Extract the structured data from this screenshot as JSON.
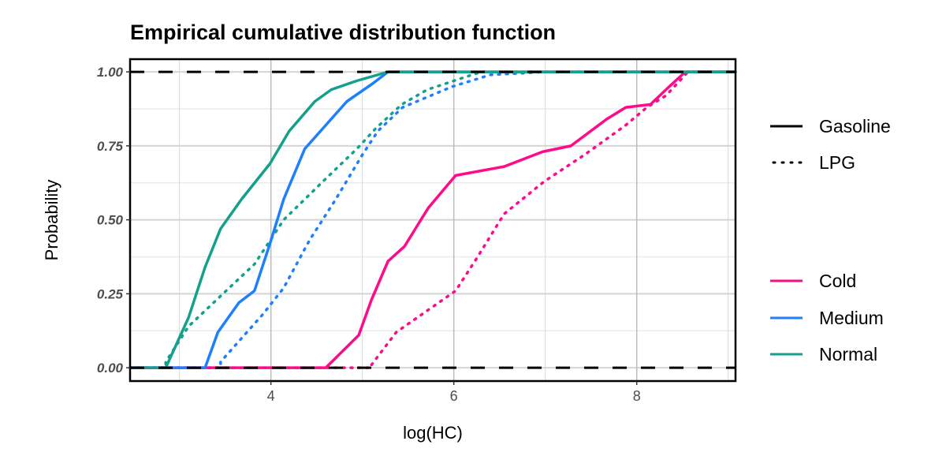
{
  "chart_data": {
    "type": "line",
    "title": "Empirical cumulative distribution function",
    "xlabel": "log(HC)",
    "ylabel": "Probability",
    "xlim": [
      2.46,
      9.08
    ],
    "ylim": [
      -0.045,
      1.043
    ],
    "xticks": [
      4,
      6,
      8
    ],
    "xtick_labels": [
      "4",
      "6",
      "8"
    ],
    "yticks": [
      0,
      0.25,
      0.5,
      0.75,
      1.0
    ],
    "ytick_labels": [
      "0.00",
      "0.25",
      "0.50",
      "0.75",
      "1.00"
    ],
    "grid": true,
    "reference_lines": [
      0,
      1
    ],
    "legend_placement": "right",
    "linetype_legend": [
      {
        "label": "Gasoline",
        "style": "solid"
      },
      {
        "label": "LPG",
        "style": "dotted"
      }
    ],
    "color_legend": [
      {
        "label": "Cold",
        "color": "#ff0a8a"
      },
      {
        "label": "Medium",
        "color": "#1e7fff"
      },
      {
        "label": "Normal",
        "color": "#14a08c"
      }
    ],
    "series": [
      {
        "name": "Cold",
        "fuel": "LPG",
        "color": "#ff0a8a",
        "style": "dotted",
        "x": [
          5.1,
          5.37,
          6.02,
          6.25,
          6.55,
          6.99,
          7.43,
          7.88,
          8.11,
          8.32,
          8.56
        ],
        "y": [
          0.01,
          0.12,
          0.26,
          0.37,
          0.52,
          0.63,
          0.72,
          0.82,
          0.88,
          0.92,
          1.0
        ]
      },
      {
        "name": "Medium",
        "fuel": "LPG",
        "color": "#1e7fff",
        "style": "dotted",
        "x": [
          3.45,
          3.91,
          4.14,
          4.42,
          4.71,
          5.0,
          5.17,
          5.44,
          5.98,
          6.4,
          7.0
        ],
        "y": [
          0.02,
          0.18,
          0.27,
          0.43,
          0.57,
          0.72,
          0.8,
          0.88,
          0.95,
          0.99,
          1.0
        ]
      },
      {
        "name": "Normal",
        "fuel": "LPG",
        "color": "#14a08c",
        "style": "dotted",
        "x": [
          2.85,
          3.1,
          3.51,
          3.82,
          4.14,
          4.57,
          4.94,
          5.15,
          5.43,
          5.71,
          6.1,
          6.3
        ],
        "y": [
          0.02,
          0.14,
          0.26,
          0.35,
          0.5,
          0.63,
          0.74,
          0.81,
          0.89,
          0.94,
          0.98,
          1.0
        ]
      },
      {
        "name": "Cold",
        "fuel": "Gasoline",
        "color": "#ff0a8a",
        "style": "solid",
        "x": [
          4.6,
          4.96,
          5.1,
          5.28,
          5.46,
          5.72,
          6.02,
          6.55,
          6.97,
          7.28,
          7.67,
          7.88,
          8.15,
          8.32,
          8.53
        ],
        "y": [
          0,
          0.11,
          0.23,
          0.36,
          0.41,
          0.54,
          0.65,
          0.68,
          0.73,
          0.75,
          0.84,
          0.88,
          0.89,
          0.94,
          1.0
        ]
      },
      {
        "name": "Medium",
        "fuel": "Gasoline",
        "color": "#1e7fff",
        "style": "solid",
        "x": [
          3.28,
          3.42,
          3.65,
          3.82,
          3.99,
          4.14,
          4.37,
          4.6,
          4.83,
          5.11,
          5.28
        ],
        "y": [
          0,
          0.12,
          0.22,
          0.26,
          0.42,
          0.57,
          0.74,
          0.82,
          0.9,
          0.96,
          1.0
        ]
      },
      {
        "name": "Normal",
        "fuel": "Gasoline",
        "color": "#14a08c",
        "style": "solid",
        "x": [
          2.85,
          3.1,
          3.28,
          3.45,
          3.68,
          3.99,
          4.2,
          4.48,
          4.66,
          4.94,
          5.28
        ],
        "y": [
          0,
          0.17,
          0.34,
          0.47,
          0.57,
          0.69,
          0.8,
          0.9,
          0.94,
          0.97,
          1.0
        ]
      }
    ]
  }
}
